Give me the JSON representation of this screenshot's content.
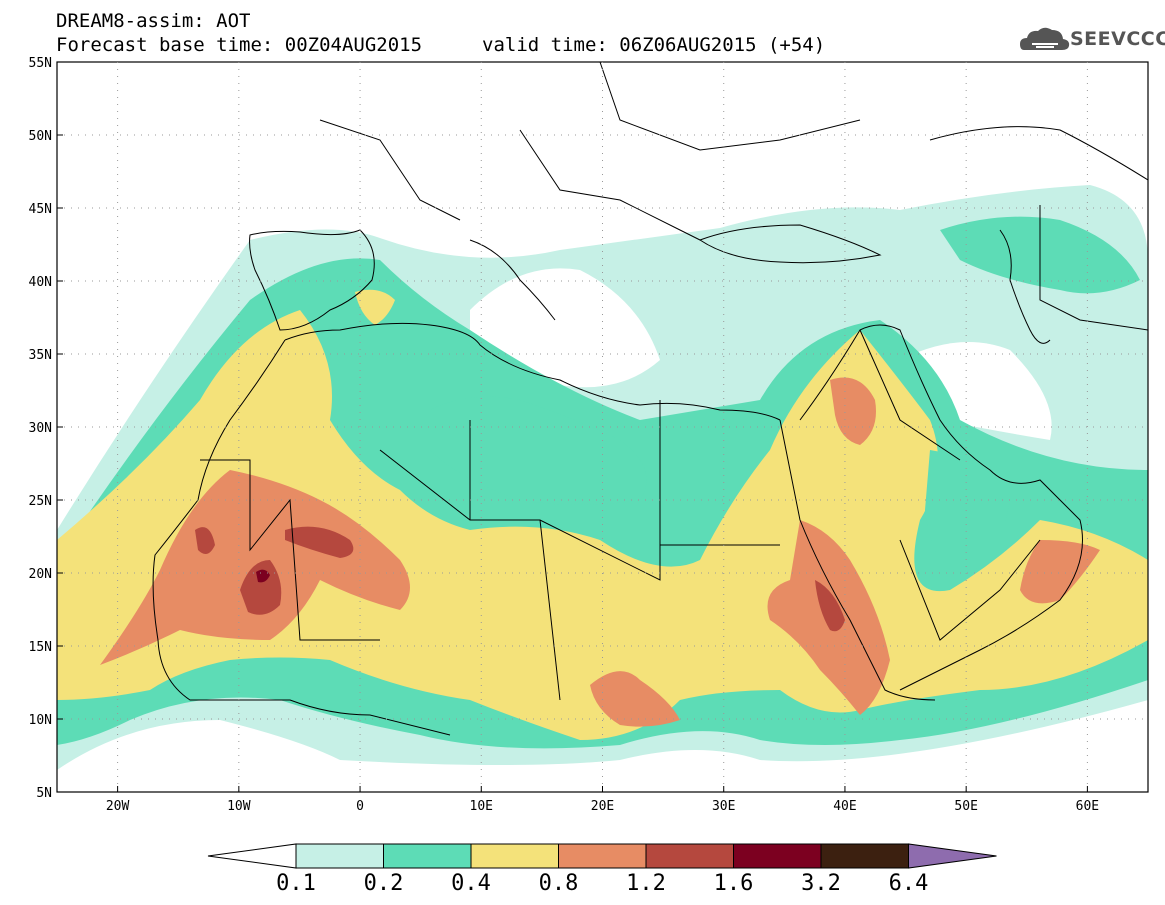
{
  "header": {
    "title": "DREAM8-assim: AOT",
    "base_time": "Forecast base time: 00Z04AUG2015",
    "valid_time": "valid time: 06Z06AUG2015 (+54)",
    "logo_text": "SEEVCCC",
    "logo_icon": "cloud-icon"
  },
  "axes": {
    "lon_ticks": [
      "20W",
      "10W",
      "0",
      "10E",
      "20E",
      "30E",
      "40E",
      "50E",
      "60E"
    ],
    "lat_ticks": [
      "55N",
      "50N",
      "45N",
      "40N",
      "35N",
      "30N",
      "25N",
      "20N",
      "15N",
      "10N",
      "5N"
    ]
  },
  "colorbar": {
    "labels": [
      "0.1",
      "0.2",
      "0.4",
      "0.8",
      "1.2",
      "1.6",
      "3.2",
      "6.4"
    ],
    "colors": [
      "#ffffff",
      "#c6f0e6",
      "#5ddcb6",
      "#f4e27a",
      "#e78c64",
      "#b5483e",
      "#7c0020",
      "#3c2010",
      "#8e6cae"
    ]
  }
}
